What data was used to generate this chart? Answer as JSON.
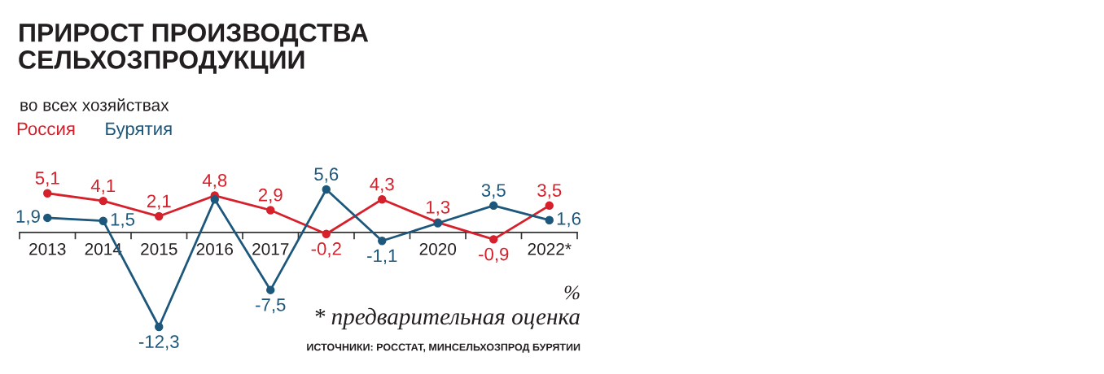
{
  "chart_data": {
    "type": "line",
    "title": "ПРИРОСТ ПРОИЗВОДСТВА\nСЕЛЬХОЗПРОДУКЦИИ",
    "subtitle": "во всех хозяйствах",
    "categories": [
      "2013",
      "2014",
      "2015",
      "2016",
      "2017",
      null,
      null,
      "2020",
      null,
      "2022*"
    ],
    "series": [
      {
        "name": "Россия",
        "color": "#d6202b",
        "values": [
          5.1,
          4.1,
          2.1,
          4.8,
          2.9,
          -0.2,
          4.3,
          1.3,
          -0.9,
          3.5
        ],
        "value_labels": [
          "5,1",
          "4,1",
          "2,1",
          "4,8",
          "2,9",
          "-0,2",
          "4,3",
          "1,3",
          "-0,9",
          "3,5"
        ]
      },
      {
        "name": "Бурятия",
        "color": "#1d587c",
        "values": [
          1.9,
          1.5,
          -12.3,
          4.3,
          -7.5,
          5.6,
          -1.1,
          1.2,
          3.5,
          1.6
        ],
        "value_labels": [
          "1,9",
          "1,5",
          "-12,3",
          null,
          "-7,5",
          "5,6",
          "-1,1",
          null,
          "3,5",
          "1,6"
        ]
      }
    ],
    "annotations": [
      "%",
      "* предварительная оценка",
      "ИСТОЧНИКИ: РОССТАТ, МИНСЕЛЬХОЗПРОД БУРЯТИИ"
    ],
    "legend": "top left",
    "marker": "circle",
    "line_style": "solid",
    "grid": false,
    "tick_labels": "x"
  }
}
